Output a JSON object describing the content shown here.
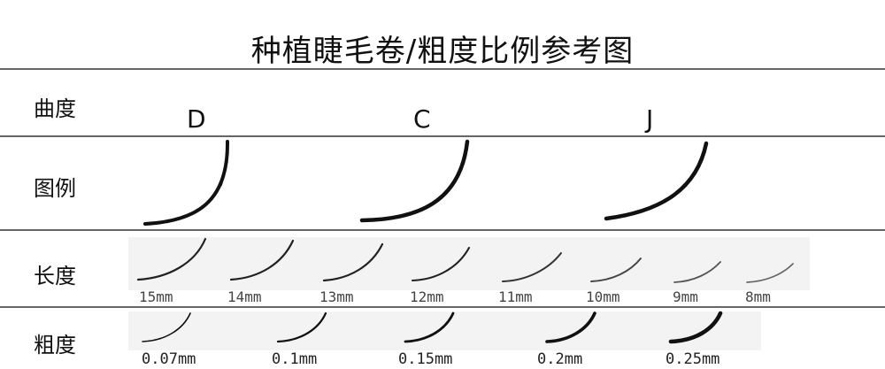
{
  "title": "种植睫毛卷/粗度比例参考图",
  "rows": {
    "curl": "曲度",
    "diagram": "图例",
    "length": "长度",
    "thickness": "粗度"
  },
  "curls": [
    "D",
    "C",
    "J"
  ],
  "lengths": [
    "15mm",
    "14mm",
    "13mm",
    "12mm",
    "11mm",
    "10mm",
    "9mm",
    "8mm"
  ],
  "thicknesses": [
    "0.07mm",
    "0.1mm",
    "0.15mm",
    "0.2mm",
    "0.25mm"
  ]
}
